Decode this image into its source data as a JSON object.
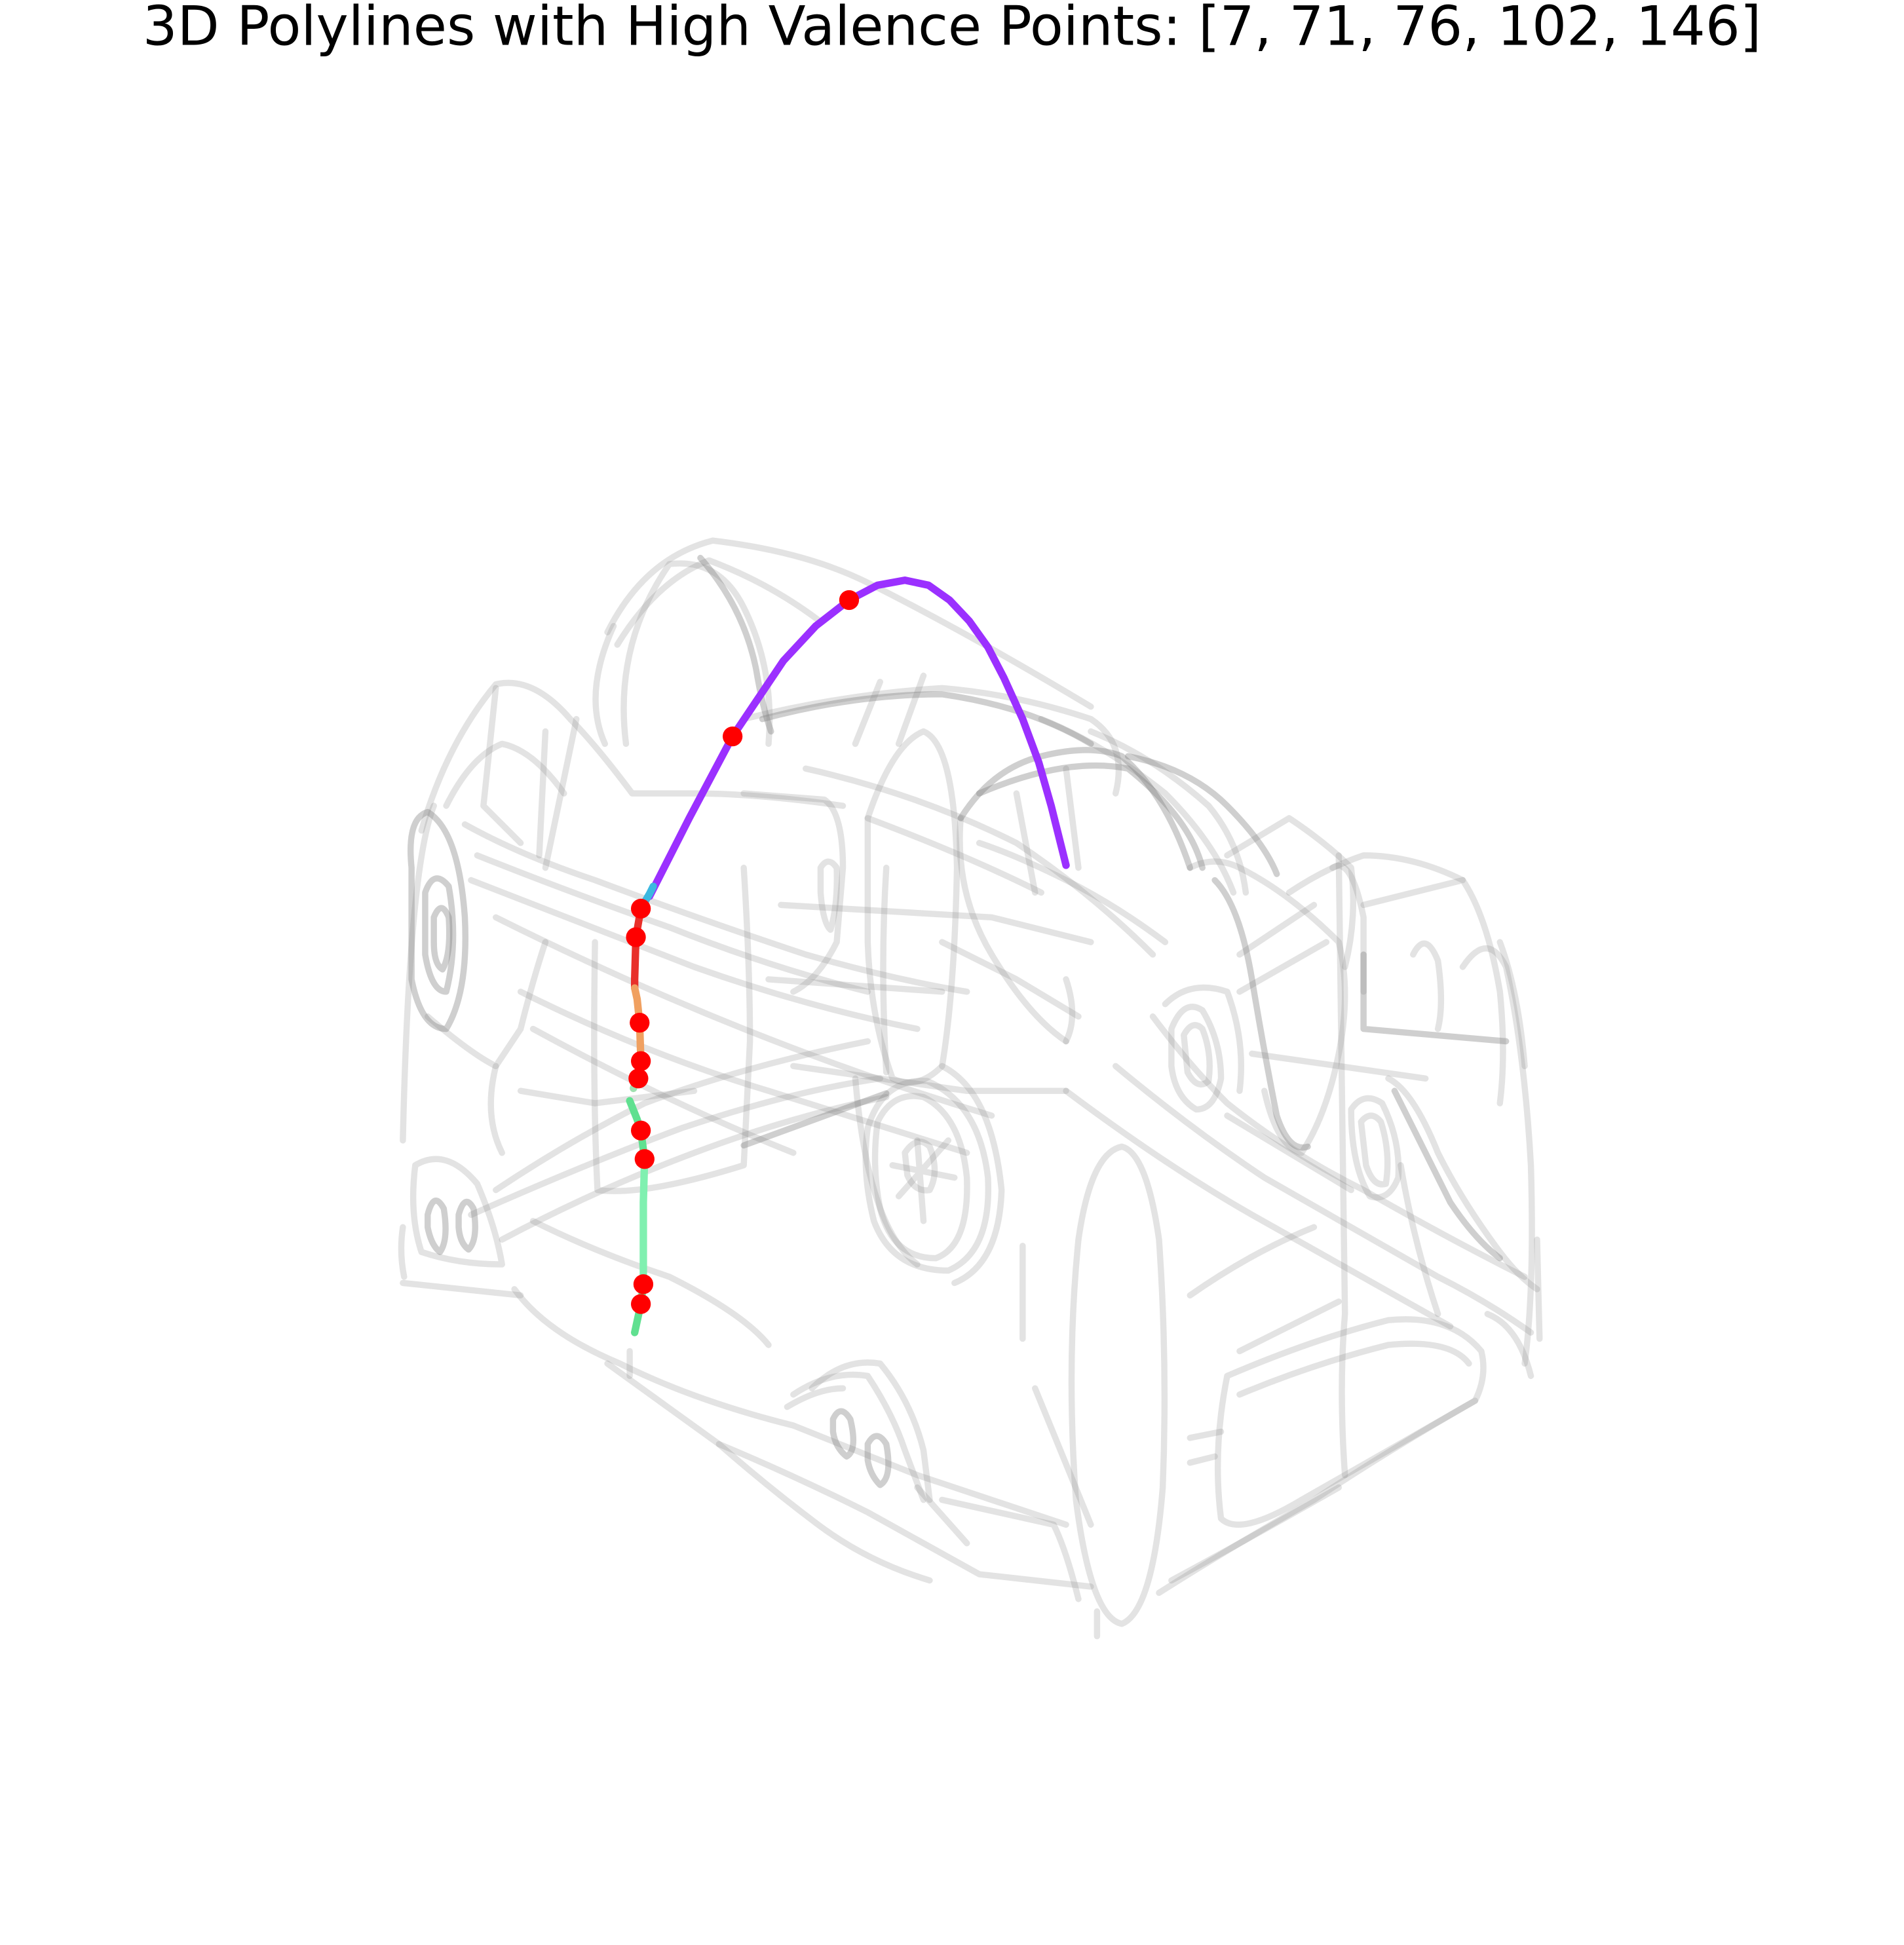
{
  "chart_data": {
    "type": "3d-line",
    "title": "3D Polylines with High Valence Points: [7, 71, 76, 102, 146]",
    "axes_visible": false,
    "grid": false,
    "background_color": "#d0d0d0",
    "highlight_point_color": "#ff0000",
    "series": [
      {
        "color": "#9b30ff",
        "points": [
          [
            524,
            723
          ],
          [
            556,
            660
          ],
          [
            591,
            594
          ],
          [
            632,
            533
          ],
          [
            658,
            505
          ],
          [
            685,
            484
          ],
          [
            708,
            472
          ],
          [
            730,
            468
          ],
          [
            749,
            472
          ],
          [
            766,
            484
          ],
          [
            782,
            501
          ],
          [
            797,
            522
          ],
          [
            810,
            547
          ],
          [
            825,
            580
          ],
          [
            838,
            615
          ],
          [
            848,
            650
          ],
          [
            860,
            698
          ]
        ]
      },
      {
        "color": "#3cb8e0",
        "points": [
          [
            517,
            733
          ],
          [
            524,
            721
          ],
          [
            527,
            715
          ]
        ]
      },
      {
        "color": "#e8302a",
        "points": [
          [
            517,
            733
          ],
          [
            513,
            756
          ],
          [
            512,
            790
          ],
          [
            512,
            797
          ]
        ]
      },
      {
        "color": "#f0a060",
        "points": [
          [
            512,
            797
          ],
          [
            514,
            806
          ],
          [
            516,
            825
          ],
          [
            517,
            856
          ]
        ]
      },
      {
        "color": "#a0e0b0",
        "points": [
          [
            517,
            856
          ],
          [
            515,
            866
          ],
          [
            514,
            870
          ],
          [
            511,
            878
          ]
        ]
      },
      {
        "color": "#60e090",
        "points": [
          [
            508,
            888
          ],
          [
            514,
            903
          ],
          [
            517,
            912
          ],
          [
            520,
            935
          ]
        ]
      },
      {
        "color": "#80f0b0",
        "points": [
          [
            520,
            935
          ],
          [
            519,
            970
          ],
          [
            519,
            1036
          ]
        ]
      },
      {
        "color": "#60e090",
        "points": [
          [
            519,
            1036
          ],
          [
            517,
            1052
          ],
          [
            512,
            1075
          ]
        ]
      }
    ],
    "highlight_points": [
      [
        685,
        484
      ],
      [
        591,
        594
      ],
      [
        517,
        733
      ],
      [
        513,
        756
      ],
      [
        516,
        825
      ],
      [
        517,
        856
      ],
      [
        515,
        870
      ],
      [
        517,
        912
      ],
      [
        520,
        935
      ],
      [
        519,
        1036
      ],
      [
        517,
        1052
      ]
    ]
  }
}
